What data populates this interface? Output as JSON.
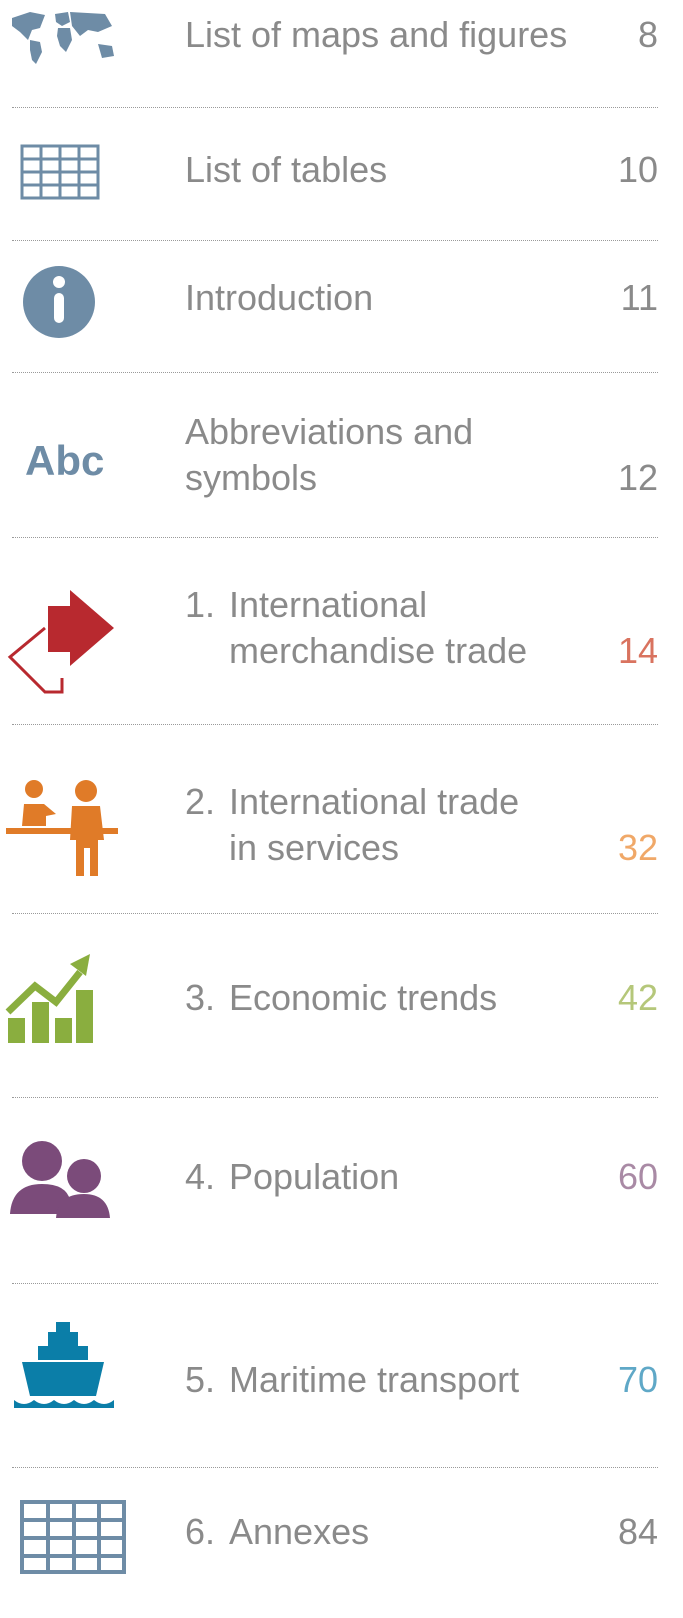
{
  "entries": [
    {
      "title_lines": [
        "List of maps and figures"
      ],
      "page": "8",
      "color": "#8a8a8a"
    },
    {
      "title_lines": [
        "List of tables"
      ],
      "page": "10",
      "color": "#8a8a8a"
    },
    {
      "title_lines": [
        "Introduction"
      ],
      "page": "11",
      "color": "#8a8a8a"
    },
    {
      "icon_text": "Abc",
      "title_lines": [
        "Abbreviations and",
        "symbols"
      ],
      "page": "12",
      "color": "#8a8a8a"
    },
    {
      "number": "1.",
      "title_lines": [
        "International",
        "merchandise trade"
      ],
      "page": "14",
      "color": "#d9735f"
    },
    {
      "number": "2.",
      "title_lines": [
        "International trade",
        "in services"
      ],
      "page": "32",
      "color": "#f0a868"
    },
    {
      "number": "3.",
      "title_lines": [
        "Economic trends"
      ],
      "page": "42",
      "color": "#b5c77a"
    },
    {
      "number": "4.",
      "title_lines": [
        "Population"
      ],
      "page": "60",
      "color": "#a98aa5"
    },
    {
      "number": "5.",
      "title_lines": [
        "Maritime transport"
      ],
      "page": "70",
      "color": "#5fa8c7"
    },
    {
      "number": "6.",
      "title_lines": [
        "Annexes"
      ],
      "page": "84",
      "color": "#8a8a8a"
    }
  ]
}
